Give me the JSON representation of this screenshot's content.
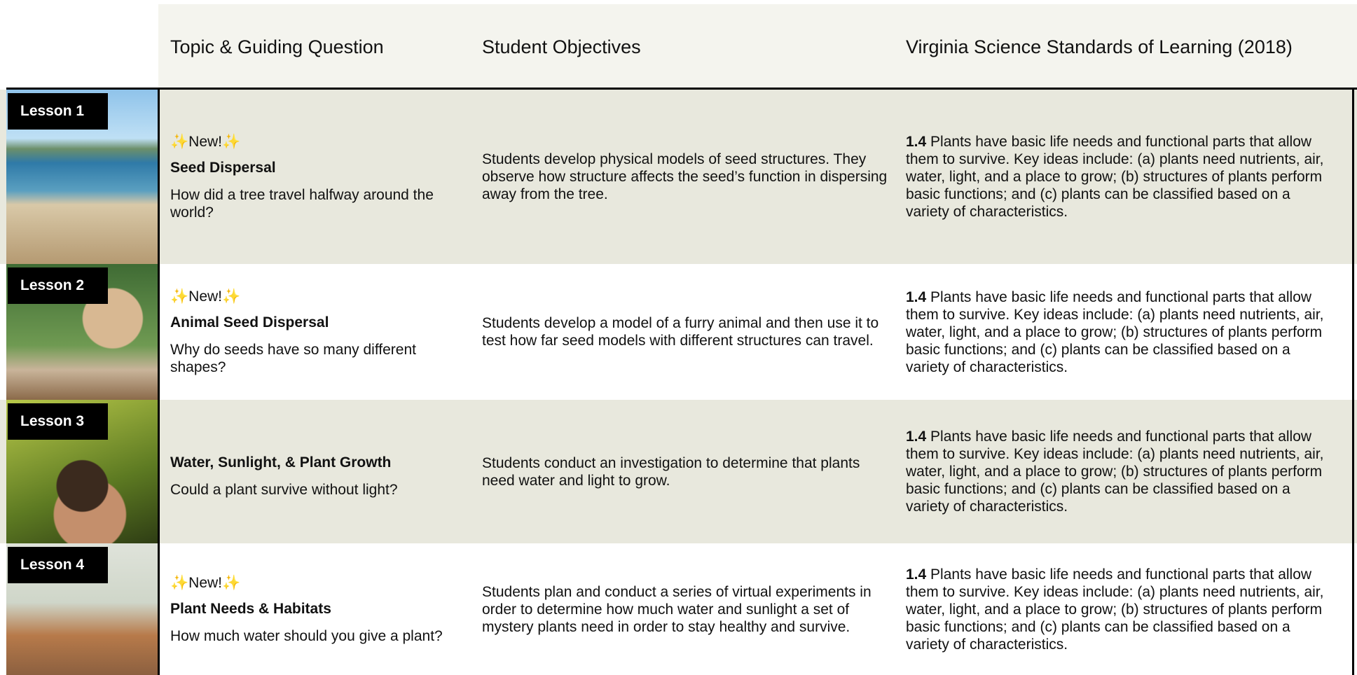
{
  "header": {
    "columns": [
      "Topic & Guiding Question",
      "Student Objectives",
      "Virginia Science Standards of Learning (2018)"
    ]
  },
  "lessons": [
    {
      "label": "Lesson 1",
      "badge": "✨New!✨",
      "topic": "Seed Dispersal",
      "question": "How did a tree travel halfway around the world?",
      "objectives": "Students develop physical models of seed structures. They observe how structure affects the seed’s function in dispersing away from the tree.",
      "standard_code": "1.4",
      "standard_text": "Plants have basic life needs and functional parts that allow them to survive. Key ideas include: (a) plants need nutrients, air, water, light, and a place to grow; (b) structures of plants perform basic functions; and (c) plants can be classified based on a variety of characteristics."
    },
    {
      "label": "Lesson 2",
      "badge": "✨New!✨",
      "topic": "Animal Seed Dispersal",
      "question": "Why do seeds have so many different shapes?",
      "objectives": "Students develop a model of a furry animal and then use it to test how far seed models with different structures can travel.",
      "standard_code": "1.4",
      "standard_text": "Plants have basic life needs and functional parts that allow them to survive. Key ideas include: (a) plants need nutrients, air, water, light, and a place to grow; (b) structures of plants perform basic functions; and (c) plants can be classified based on a variety of characteristics."
    },
    {
      "label": "Lesson 3",
      "topic": "Water, Sunlight, & Plant Growth",
      "question": "Could a plant survive without light?",
      "objectives": "Students conduct an investigation to determine that plants need water and light to grow.",
      "standard_code": "1.4",
      "standard_text": "Plants have basic life needs and functional parts that allow them to survive. Key ideas include: (a) plants need nutrients, air, water, light, and a place to grow; (b) structures of plants perform basic functions; and (c) plants can be classified based on a variety of characteristics."
    },
    {
      "label": "Lesson 4",
      "badge": "✨New!✨",
      "topic": "Plant Needs & Habitats",
      "question": "How much water should you give a plant?",
      "objectives": "Students  plan and conduct a series of virtual experiments in order to determine how much water and sunlight a set of mystery plants need in order to stay healthy and survive.",
      "standard_code": "1.4",
      "standard_text": "Plants have basic life needs and functional parts that allow them to survive. Key ideas include: (a) plants need nutrients, air, water, light, and a place to grow; (b) structures of plants perform basic functions; and (c) plants can be classified based on a variety of characteristics."
    }
  ]
}
